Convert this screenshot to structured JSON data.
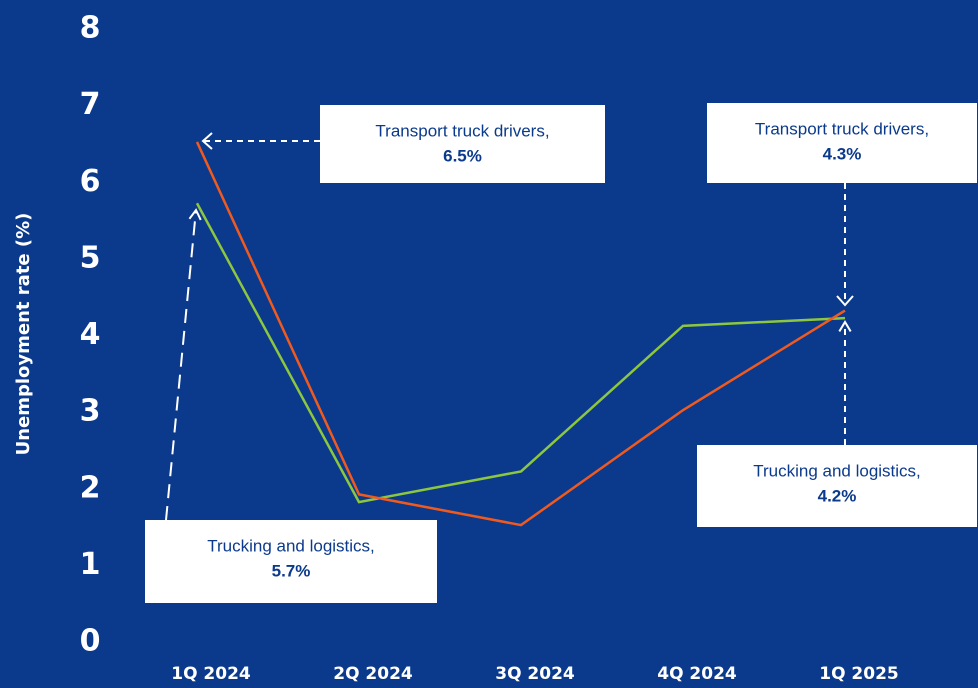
{
  "chart_data": {
    "type": "line",
    "ylabel": "Unemployment rate (%)",
    "categories": [
      "1Q 2024",
      "2Q 2024",
      "3Q 2024",
      "4Q 2024",
      "1Q 2025"
    ],
    "series": [
      {
        "name": "Transport truck drivers,",
        "color": "#f05a1e",
        "values": [
          6.5,
          1.9,
          1.5,
          3.0,
          4.3
        ],
        "value_labels": [
          "6.5%",
          null,
          null,
          null,
          "4.3%"
        ]
      },
      {
        "name": "Trucking and logistics,",
        "color": "#8dc63f",
        "values": [
          5.7,
          1.8,
          2.2,
          4.1,
          4.2
        ],
        "value_labels": [
          "5.7%",
          null,
          null,
          null,
          "4.2%"
        ]
      }
    ],
    "ylim": [
      0,
      8
    ],
    "yticks": [
      0,
      1,
      2,
      3,
      4,
      5,
      6,
      7,
      8
    ],
    "grid": false,
    "background": "#0b3a8c"
  }
}
